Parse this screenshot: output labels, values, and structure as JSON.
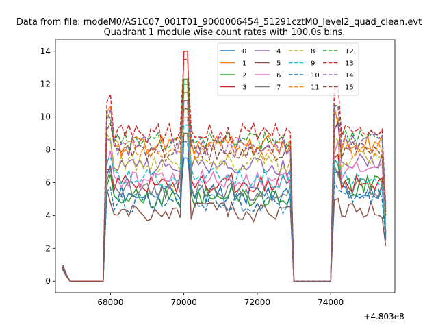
{
  "chart_data": {
    "type": "line",
    "suptitle": "Data from file: modeM0/AS1C07_001T01_9000006454_51291cztM0_level2_quad_clean.evt",
    "title": "Quadrant 1 module wise count rates with 100.0s bins.",
    "xlabel": "",
    "ylabel": "",
    "x_offset_label": "+4.803e8",
    "xlim": [
      66500,
      75750
    ],
    "ylim": [
      -0.7,
      14.7
    ],
    "x_ticks": [
      68000,
      70000,
      72000,
      74000
    ],
    "y_ticks": [
      0,
      2,
      4,
      6,
      8,
      10,
      12,
      14
    ],
    "legend": {
      "placement": "top-right",
      "columns": 4
    },
    "grid": false,
    "segments": [
      {
        "start": 66700,
        "end": 66900,
        "step": 100
      },
      {
        "start": 66900,
        "end": 67800,
        "step": 100
      },
      {
        "start": 67900,
        "end": 72900,
        "step": 100
      },
      {
        "start": 73000,
        "end": 74000,
        "step": 100
      },
      {
        "start": 74100,
        "end": 75500,
        "step": 100
      }
    ],
    "series": [
      {
        "name": "0",
        "color": "#1f77b4",
        "dash": false,
        "levels": [
          1.0,
          0,
          5.3,
          0,
          5.3
        ],
        "peak": 7.5
      },
      {
        "name": "1",
        "color": "#ff7f0e",
        "dash": false,
        "levels": [
          0.9,
          0,
          8.3,
          0,
          8.3
        ],
        "peak": 11.5
      },
      {
        "name": "2",
        "color": "#2ca02c",
        "dash": false,
        "levels": [
          0.85,
          0,
          5.1,
          0,
          5.8
        ],
        "peak": 12.3
      },
      {
        "name": "3",
        "color": "#d62728",
        "dash": false,
        "levels": [
          0.8,
          0,
          6.0,
          0,
          6.0
        ],
        "peak": 14.0
      },
      {
        "name": "4",
        "color": "#9467bd",
        "dash": false,
        "levels": [
          0.8,
          0,
          7.0,
          0,
          7.5
        ],
        "peak": 10.5
      },
      {
        "name": "5",
        "color": "#8c564b",
        "dash": false,
        "levels": [
          0.75,
          0,
          4.2,
          0,
          4.3
        ],
        "peak": 9.0
      },
      {
        "name": "6",
        "color": "#e377c2",
        "dash": false,
        "levels": [
          0.8,
          0,
          6.2,
          0,
          6.8
        ],
        "peak": 10.0
      },
      {
        "name": "7",
        "color": "#7f7f7f",
        "dash": false,
        "levels": [
          0.7,
          0,
          5.5,
          0,
          5.7
        ],
        "peak": 11.0
      },
      {
        "name": "8",
        "color": "#bcbd22",
        "dash": true,
        "levels": [
          0.8,
          0,
          7.2,
          0,
          7.4
        ],
        "peak": 10.5
      },
      {
        "name": "9",
        "color": "#17becf",
        "dash": true,
        "levels": [
          0.75,
          0,
          6.3,
          0,
          6.3
        ],
        "peak": 9.5
      },
      {
        "name": "10",
        "color": "#1f77b4",
        "dash": true,
        "levels": [
          0.7,
          0,
          4.7,
          0,
          5.0
        ],
        "peak": 8.5
      },
      {
        "name": "11",
        "color": "#ff7f0e",
        "dash": true,
        "levels": [
          0.8,
          0,
          8.0,
          0,
          8.0
        ],
        "peak": 11.0
      },
      {
        "name": "12",
        "color": "#2ca02c",
        "dash": true,
        "levels": [
          0.85,
          0,
          8.5,
          0,
          8.8
        ],
        "peak": 12.0
      },
      {
        "name": "13",
        "color": "#d62728",
        "dash": true,
        "levels": [
          0.9,
          0,
          9.0,
          0,
          9.3
        ],
        "peak": 13.5
      },
      {
        "name": "14",
        "color": "#9467bd",
        "dash": true,
        "levels": [
          0.8,
          0,
          8.2,
          0,
          8.5
        ],
        "peak": 11.0
      },
      {
        "name": "15",
        "color": "#8c564b",
        "dash": true,
        "levels": [
          0.8,
          0,
          7.8,
          0,
          8.0
        ],
        "peak": 10.5
      }
    ],
    "flare_time": 70050
  }
}
